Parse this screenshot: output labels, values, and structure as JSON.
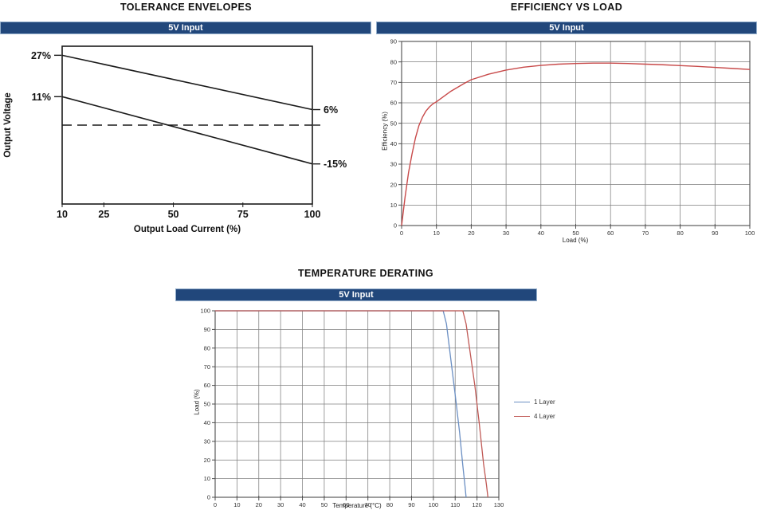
{
  "colors": {
    "banner_bg": "#21477b",
    "banner_border": "#93aecb",
    "grid": "#7f7f7f",
    "plot_border": "#4d4d4d",
    "tolerance_line": "#1a1a1a",
    "efficiency_curve": "#c84a4a",
    "layer1_blue": "#6b8fc3",
    "layer4_red": "#c05a56"
  },
  "chart_data": [
    {
      "id": "tolerance",
      "type": "line",
      "title": "TOLERANCE ENVELOPES",
      "banner": "5V Input",
      "xlabel": "Output Load Current (%)",
      "ylabel": "Output Voltage",
      "xlim": [
        10,
        100
      ],
      "ylim": [
        -30.5,
        30.5
      ],
      "x_ticks": [
        10,
        25,
        50,
        75,
        100
      ],
      "grid": false,
      "annotations_left": [
        {
          "label": "27%",
          "y": 27
        },
        {
          "label": "11%",
          "y": 11
        }
      ],
      "annotations_right": [
        {
          "label": "6%",
          "y": 6
        },
        {
          "label": "-15%",
          "y": -15
        },
        {
          "label": "",
          "y": 0
        }
      ],
      "series": [
        {
          "name": "upper-envelope",
          "color": "#1a1a1a",
          "dash": "solid",
          "points": [
            [
              10,
              27
            ],
            [
              100,
              6
            ]
          ]
        },
        {
          "name": "lower-envelope",
          "color": "#1a1a1a",
          "dash": "solid",
          "points": [
            [
              10,
              11
            ],
            [
              100,
              -15
            ]
          ]
        },
        {
          "name": "nominal",
          "color": "#1a1a1a",
          "dash": "dashed",
          "points": [
            [
              10,
              0
            ],
            [
              100,
              0
            ]
          ]
        }
      ]
    },
    {
      "id": "efficiency",
      "type": "line",
      "title": "EFFICIENCY VS LOAD",
      "banner": "5V Input",
      "xlabel": "Load  (%)",
      "ylabel": "Efficiency  (%)",
      "xlim": [
        0,
        100
      ],
      "ylim": [
        0,
        90
      ],
      "x_ticks": [
        0,
        10,
        20,
        30,
        40,
        50,
        60,
        70,
        80,
        90,
        100
      ],
      "y_ticks": [
        0,
        10,
        20,
        30,
        40,
        50,
        60,
        70,
        80,
        90
      ],
      "grid": true,
      "series": [
        {
          "name": "efficiency",
          "color": "#c84a4a",
          "dash": "solid",
          "points": [
            [
              0,
              0
            ],
            [
              1,
              14
            ],
            [
              2,
              26
            ],
            [
              3,
              35
            ],
            [
              4,
              43
            ],
            [
              5,
              49
            ],
            [
              6,
              53
            ],
            [
              7,
              56
            ],
            [
              8,
              58
            ],
            [
              9,
              59.5
            ],
            [
              10,
              60.5
            ],
            [
              12,
              63
            ],
            [
              14,
              65.5
            ],
            [
              16,
              67.5
            ],
            [
              18,
              69.5
            ],
            [
              20,
              71.3
            ],
            [
              25,
              74
            ],
            [
              30,
              76
            ],
            [
              35,
              77.4
            ],
            [
              40,
              78.3
            ],
            [
              45,
              78.9
            ],
            [
              50,
              79.2
            ],
            [
              55,
              79.4
            ],
            [
              60,
              79.4
            ],
            [
              65,
              79.2
            ],
            [
              70,
              78.9
            ],
            [
              75,
              78.6
            ],
            [
              80,
              78.2
            ],
            [
              85,
              77.8
            ],
            [
              90,
              77.3
            ],
            [
              95,
              76.8
            ],
            [
              100,
              76.3
            ]
          ]
        }
      ]
    },
    {
      "id": "derating",
      "type": "line",
      "title": "TEMPERATURE DERATING",
      "banner": "5V Input",
      "xlabel": "Temperature (°C)",
      "ylabel": "Load  (%)",
      "xlim": [
        0,
        130
      ],
      "ylim": [
        0,
        100
      ],
      "x_ticks": [
        0,
        10,
        20,
        30,
        40,
        50,
        60,
        70,
        80,
        90,
        100,
        110,
        120,
        130
      ],
      "y_ticks": [
        0,
        10,
        20,
        30,
        40,
        50,
        60,
        70,
        80,
        90,
        100
      ],
      "grid": true,
      "legend": [
        {
          "name": "1 Layer",
          "color": "#6b8fc3"
        },
        {
          "name": "4 Layer",
          "color": "#c05a56"
        }
      ],
      "series": [
        {
          "name": "1 Layer",
          "color": "#6b8fc3",
          "dash": "solid",
          "points": [
            [
              0,
              100
            ],
            [
              104.5,
              100
            ],
            [
              106,
              93
            ],
            [
              110,
              55
            ],
            [
              112,
              35
            ],
            [
              113.5,
              17
            ],
            [
              114.5,
              6
            ],
            [
              115,
              0
            ]
          ]
        },
        {
          "name": "4 Layer",
          "color": "#c05a56",
          "dash": "solid",
          "points": [
            [
              0,
              100
            ],
            [
              113.5,
              100
            ],
            [
              115,
              93
            ],
            [
              119,
              60
            ],
            [
              121,
              40
            ],
            [
              123,
              18
            ],
            [
              124.3,
              7
            ],
            [
              125,
              0
            ]
          ]
        }
      ]
    }
  ]
}
